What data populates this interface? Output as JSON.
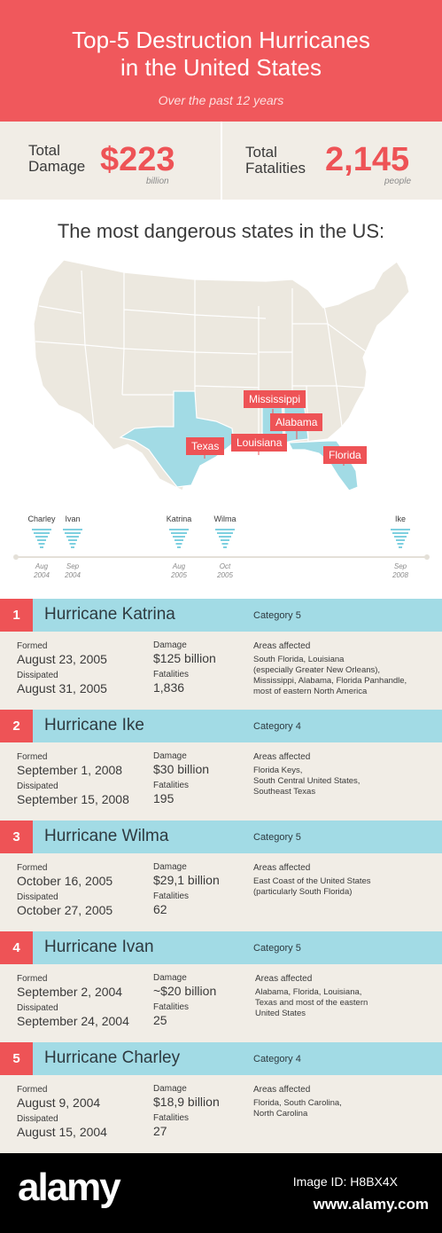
{
  "header": {
    "title_line1": "Top-5 Destruction Hurricanes",
    "title_line2": "in the United States",
    "subtitle": "Over the past 12 years"
  },
  "totals": {
    "damage_label_1": "Total",
    "damage_label_2": "Damage",
    "damage_value": "$223",
    "damage_unit": "billion",
    "fatalities_label_1": "Total",
    "fatalities_label_2": "Fatalities",
    "fatalities_value": "2,145",
    "fatalities_unit": "people"
  },
  "map": {
    "title": "The most dangerous states in the US:",
    "states": [
      "Mississippi",
      "Alabama",
      "Texas",
      "Louisiana",
      "Florida"
    ],
    "base_color": "#ece8df",
    "highlight_color": "#a2dbe5",
    "label_color": "#ee5356"
  },
  "timeline": [
    {
      "name": "Charley",
      "month": "Aug",
      "year": "2004"
    },
    {
      "name": "Ivan",
      "month": "Sep",
      "year": "2004"
    },
    {
      "name": "Katrina",
      "month": "Aug",
      "year": "2005"
    },
    {
      "name": "Wilma",
      "month": "Oct",
      "year": "2005"
    },
    {
      "name": "Ike",
      "month": "Sep",
      "year": "2008"
    }
  ],
  "labels": {
    "formed": "Formed",
    "dissipated": "Dissipated",
    "damage": "Damage",
    "fatalities": "Fatalities",
    "areas": "Areas affected"
  },
  "hurricanes": [
    {
      "rank": "1",
      "name": "Hurricane Katrina",
      "category": "Category 5",
      "formed": "August 23, 2005",
      "dissipated": "August 31, 2005",
      "damage": "$125 billion",
      "fatalities": "1,836",
      "areas": [
        "South Florida, Louisiana",
        "(especially Greater New Orleans),",
        "Mississippi, Alabama, Florida Panhandle,",
        "most of eastern North America"
      ]
    },
    {
      "rank": "2",
      "name": "Hurricane Ike",
      "category": "Category 4",
      "formed": "September 1, 2008",
      "dissipated": "September 15, 2008",
      "damage": "$30 billion",
      "fatalities": "195",
      "areas": [
        "Florida Keys,",
        "South Central United States,",
        "Southeast Texas"
      ]
    },
    {
      "rank": "3",
      "name": "Hurricane Wilma",
      "category": "Category 5",
      "formed": "October 16, 2005",
      "dissipated": "October 27, 2005",
      "damage": "$29,1 billion",
      "fatalities": "62",
      "areas": [
        "East Coast of the United States",
        "(particularly South Florida)"
      ]
    },
    {
      "rank": "4",
      "name": "Hurricane Ivan",
      "category": "Category 5",
      "formed": "September 2, 2004",
      "dissipated": "September 24, 2004",
      "damage": "~$20 billion",
      "fatalities": "25",
      "areas": [
        "Alabama, Florida, Louisiana,",
        "Texas and most of the eastern",
        "United States"
      ]
    },
    {
      "rank": "5",
      "name": "Hurricane Charley",
      "category": "Category 4",
      "formed": "August 9, 2004",
      "dissipated": "August 15, 2004",
      "damage": "$18,9 billion",
      "fatalities": "27",
      "areas": [
        "Florida, South Carolina,",
        "North Carolina"
      ]
    }
  ],
  "footer": {
    "brand": "alamy",
    "image_id": "Image ID: H8BX4X",
    "site": "www.alamy.com"
  }
}
